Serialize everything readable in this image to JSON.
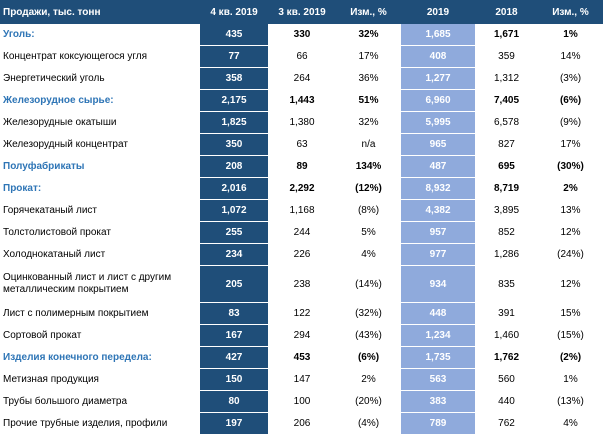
{
  "table": {
    "headers": [
      "Продажи, тыс. тонн",
      "4 кв. 2019",
      "3 кв. 2019",
      "Изм., %",
      "2019",
      "2018",
      "Изм., %"
    ],
    "rows": [
      {
        "label": "Уголь:",
        "q4": "435",
        "q3": "330",
        "chg_q": "32%",
        "y2019": "1,685",
        "y2018": "1,671",
        "chg_y": "1%",
        "kind": "cat"
      },
      {
        "label": "Концентрат коксующегося угля",
        "q4": "77",
        "q3": "66",
        "chg_q": "17%",
        "y2019": "408",
        "y2018": "359",
        "chg_y": "14%",
        "kind": "sub"
      },
      {
        "label": "Энергетический уголь",
        "q4": "358",
        "q3": "264",
        "chg_q": "36%",
        "y2019": "1,277",
        "y2018": "1,312",
        "chg_y": "(3%)",
        "kind": "sub"
      },
      {
        "label": "Железорудное сырье:",
        "q4": "2,175",
        "q3": "1,443",
        "chg_q": "51%",
        "y2019": "6,960",
        "y2018": "7,405",
        "chg_y": "(6%)",
        "kind": "cat"
      },
      {
        "label": "Железорудные окатыши",
        "q4": "1,825",
        "q3": "1,380",
        "chg_q": "32%",
        "y2019": "5,995",
        "y2018": "6,578",
        "chg_y": "(9%)",
        "kind": "sub"
      },
      {
        "label": "Железорудный концентрат",
        "q4": "350",
        "q3": "63",
        "chg_q": "n/a",
        "y2019": "965",
        "y2018": "827",
        "chg_y": "17%",
        "kind": "sub"
      },
      {
        "label": "Полуфабрикаты",
        "q4": "208",
        "q3": "89",
        "chg_q": "134%",
        "y2019": "487",
        "y2018": "695",
        "chg_y": "(30%)",
        "kind": "cat"
      },
      {
        "label": "Прокат:",
        "q4": "2,016",
        "q3": "2,292",
        "chg_q": "(12%)",
        "y2019": "8,932",
        "y2018": "8,719",
        "chg_y": "2%",
        "kind": "cat"
      },
      {
        "label": "Горячекатаный лист",
        "q4": "1,072",
        "q3": "1,168",
        "chg_q": "(8%)",
        "y2019": "4,382",
        "y2018": "3,895",
        "chg_y": "13%",
        "kind": "sub"
      },
      {
        "label": "Толстолистовой прокат",
        "q4": "255",
        "q3": "244",
        "chg_q": "5%",
        "y2019": "957",
        "y2018": "852",
        "chg_y": "12%",
        "kind": "sub"
      },
      {
        "label": "Холоднокатаный лист",
        "q4": "234",
        "q3": "226",
        "chg_q": "4%",
        "y2019": "977",
        "y2018": "1,286",
        "chg_y": "(24%)",
        "kind": "sub"
      },
      {
        "label": "Оцинкованный лист и лист с другим металлическим покрытием",
        "q4": "205",
        "q3": "238",
        "chg_q": "(14%)",
        "y2019": "934",
        "y2018": "835",
        "chg_y": "12%",
        "kind": "sub",
        "tall": true
      },
      {
        "label": "Лист с полимерным покрытием",
        "q4": "83",
        "q3": "122",
        "chg_q": "(32%)",
        "y2019": "448",
        "y2018": "391",
        "chg_y": "15%",
        "kind": "sub"
      },
      {
        "label": "Сортовой прокат",
        "q4": "167",
        "q3": "294",
        "chg_q": "(43%)",
        "y2019": "1,234",
        "y2018": "1,460",
        "chg_y": "(15%)",
        "kind": "sub"
      },
      {
        "label": "Изделия конечного передела:",
        "q4": "427",
        "q3": "453",
        "chg_q": "(6%)",
        "y2019": "1,735",
        "y2018": "1,762",
        "chg_y": "(2%)",
        "kind": "cat"
      },
      {
        "label": "Метизная продукция",
        "q4": "150",
        "q3": "147",
        "chg_q": "2%",
        "y2019": "563",
        "y2018": "560",
        "chg_y": "1%",
        "kind": "sub"
      },
      {
        "label": "Трубы большого диаметра",
        "q4": "80",
        "q3": "100",
        "chg_q": "(20%)",
        "y2019": "383",
        "y2018": "440",
        "chg_y": "(13%)",
        "kind": "sub"
      },
      {
        "label": "Прочие трубные изделия, профили",
        "q4": "197",
        "q3": "206",
        "chg_q": "(4%)",
        "y2019": "789",
        "y2018": "762",
        "chg_y": "4%",
        "kind": "sub"
      }
    ]
  },
  "colors": {
    "header_bg": "#1f4e79",
    "q4_column_bg": "#1f4e79",
    "y2019_column_bg": "#8faadc",
    "category_label": "#2e75b6"
  }
}
